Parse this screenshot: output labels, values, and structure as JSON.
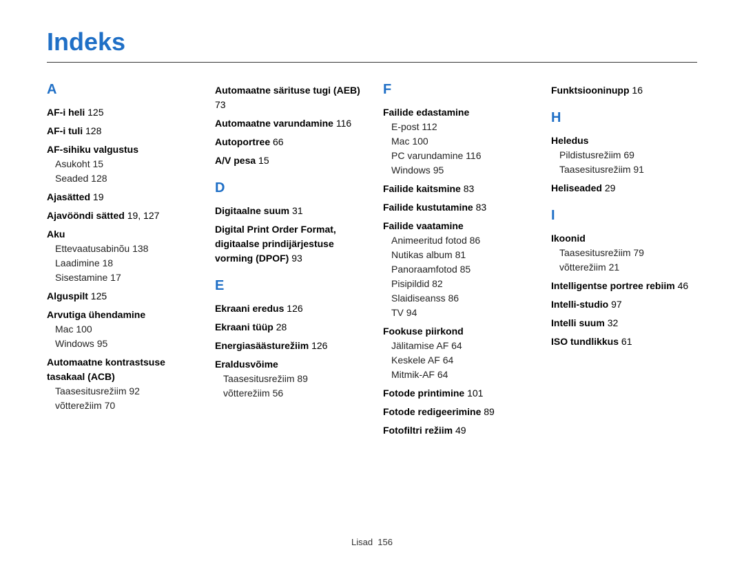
{
  "title": "Indeks",
  "footer_label": "Lisad",
  "footer_page": "156",
  "colors": {
    "heading": "#1f6fc6",
    "text": "#222222",
    "rule": "#333333",
    "background": "#ffffff"
  },
  "columns": [
    {
      "blocks": [
        {
          "type": "letter",
          "text": "A"
        },
        {
          "type": "term",
          "text": "AF-i heli",
          "page": "125"
        },
        {
          "type": "term",
          "text": "AF-i tuli",
          "page": "128"
        },
        {
          "type": "term",
          "text": "AF-sihiku valgustus"
        },
        {
          "type": "sub",
          "text": "Asukoht",
          "page": "15"
        },
        {
          "type": "sub",
          "text": "Seaded",
          "page": "128"
        },
        {
          "type": "term",
          "text": "Ajasätted",
          "page": "19"
        },
        {
          "type": "term",
          "text": "Ajavööndi sätted",
          "page": "19, 127"
        },
        {
          "type": "term",
          "text": "Aku"
        },
        {
          "type": "sub",
          "text": "Ettevaatusabinõu",
          "page": "138"
        },
        {
          "type": "sub",
          "text": "Laadimine",
          "page": "18"
        },
        {
          "type": "sub",
          "text": "Sisestamine",
          "page": "17"
        },
        {
          "type": "term",
          "text": "Alguspilt",
          "page": "125"
        },
        {
          "type": "term",
          "text": "Arvutiga ühendamine"
        },
        {
          "type": "sub",
          "text": "Mac",
          "page": "100"
        },
        {
          "type": "sub",
          "text": "Windows",
          "page": "95"
        },
        {
          "type": "term",
          "text": "Automaatne kontrastsuse tasakaal (ACB)"
        },
        {
          "type": "sub",
          "text": "Taasesitusrežiim",
          "page": "92"
        },
        {
          "type": "sub",
          "text": "võtterežiim",
          "page": "70"
        }
      ]
    },
    {
      "blocks": [
        {
          "type": "term",
          "text": "Automaatne särituse tugi (AEB)",
          "page": "73"
        },
        {
          "type": "term",
          "text": "Automaatne varundamine",
          "page": "116"
        },
        {
          "type": "term",
          "text": "Autoportree",
          "page": "66"
        },
        {
          "type": "term",
          "text": "A/V pesa",
          "page": "15"
        },
        {
          "type": "letter",
          "text": "D"
        },
        {
          "type": "term",
          "text": "Digitaalne suum",
          "page": "31"
        },
        {
          "type": "term",
          "text": "Digital Print Order Format, digitaalse prindijärjestuse vorming (DPOF)",
          "page": "93"
        },
        {
          "type": "letter",
          "text": "E"
        },
        {
          "type": "term",
          "text": "Ekraani eredus",
          "page": "126"
        },
        {
          "type": "term",
          "text": "Ekraani tüüp",
          "page": "28"
        },
        {
          "type": "term",
          "text": "Energiasäästurežiim",
          "page": "126"
        },
        {
          "type": "term",
          "text": "Eraldusvõime"
        },
        {
          "type": "sub",
          "text": "Taasesitusrežiim",
          "page": "89"
        },
        {
          "type": "sub",
          "text": "võtterežiim",
          "page": "56"
        }
      ]
    },
    {
      "blocks": [
        {
          "type": "letter",
          "text": "F"
        },
        {
          "type": "term",
          "text": "Failide edastamine"
        },
        {
          "type": "sub",
          "text": "E-post",
          "page": "112"
        },
        {
          "type": "sub",
          "text": "Mac",
          "page": "100"
        },
        {
          "type": "sub",
          "text": "PC varundamine",
          "page": "116"
        },
        {
          "type": "sub",
          "text": "Windows",
          "page": "95"
        },
        {
          "type": "term",
          "text": "Failide kaitsmine",
          "page": "83"
        },
        {
          "type": "term",
          "text": "Failide kustutamine",
          "page": "83"
        },
        {
          "type": "term",
          "text": "Failide vaatamine"
        },
        {
          "type": "sub",
          "text": "Animeeritud fotod",
          "page": "86"
        },
        {
          "type": "sub",
          "text": "Nutikas album",
          "page": "81"
        },
        {
          "type": "sub",
          "text": "Panoraamfotod",
          "page": "85"
        },
        {
          "type": "sub",
          "text": "Pisipildid",
          "page": "82"
        },
        {
          "type": "sub",
          "text": "Slaidiseanss",
          "page": "86"
        },
        {
          "type": "sub",
          "text": "TV",
          "page": "94"
        },
        {
          "type": "term",
          "text": "Fookuse piirkond"
        },
        {
          "type": "sub",
          "text": "Jälitamise AF",
          "page": "64"
        },
        {
          "type": "sub",
          "text": "Keskele AF",
          "page": "64"
        },
        {
          "type": "sub",
          "text": "Mitmik-AF",
          "page": "64"
        },
        {
          "type": "term",
          "text": "Fotode printimine",
          "page": "101"
        },
        {
          "type": "term",
          "text": "Fotode redigeerimine",
          "page": "89"
        },
        {
          "type": "term",
          "text": "Fotofiltri režiim",
          "page": "49"
        }
      ]
    },
    {
      "blocks": [
        {
          "type": "term",
          "text": "Funktsiooninupp",
          "page": "16"
        },
        {
          "type": "letter",
          "text": "H"
        },
        {
          "type": "term",
          "text": "Heledus"
        },
        {
          "type": "sub",
          "text": "Pildistusrežiim",
          "page": "69"
        },
        {
          "type": "sub",
          "text": "Taasesitusrežiim",
          "page": "91"
        },
        {
          "type": "term",
          "text": "Heliseaded",
          "page": "29"
        },
        {
          "type": "letter",
          "text": "I"
        },
        {
          "type": "term",
          "text": "Ikoonid"
        },
        {
          "type": "sub",
          "text": "Taasesitusrežiim",
          "page": "79"
        },
        {
          "type": "sub",
          "text": "võtterežiim",
          "page": "21"
        },
        {
          "type": "term",
          "text": "Intelligentse portree rebiim",
          "page": "46"
        },
        {
          "type": "term",
          "text": "Intelli-studio",
          "page": "97"
        },
        {
          "type": "term",
          "text": "Intelli suum",
          "page": "32"
        },
        {
          "type": "term",
          "text": "ISO tundlikkus",
          "page": "61"
        }
      ]
    }
  ]
}
